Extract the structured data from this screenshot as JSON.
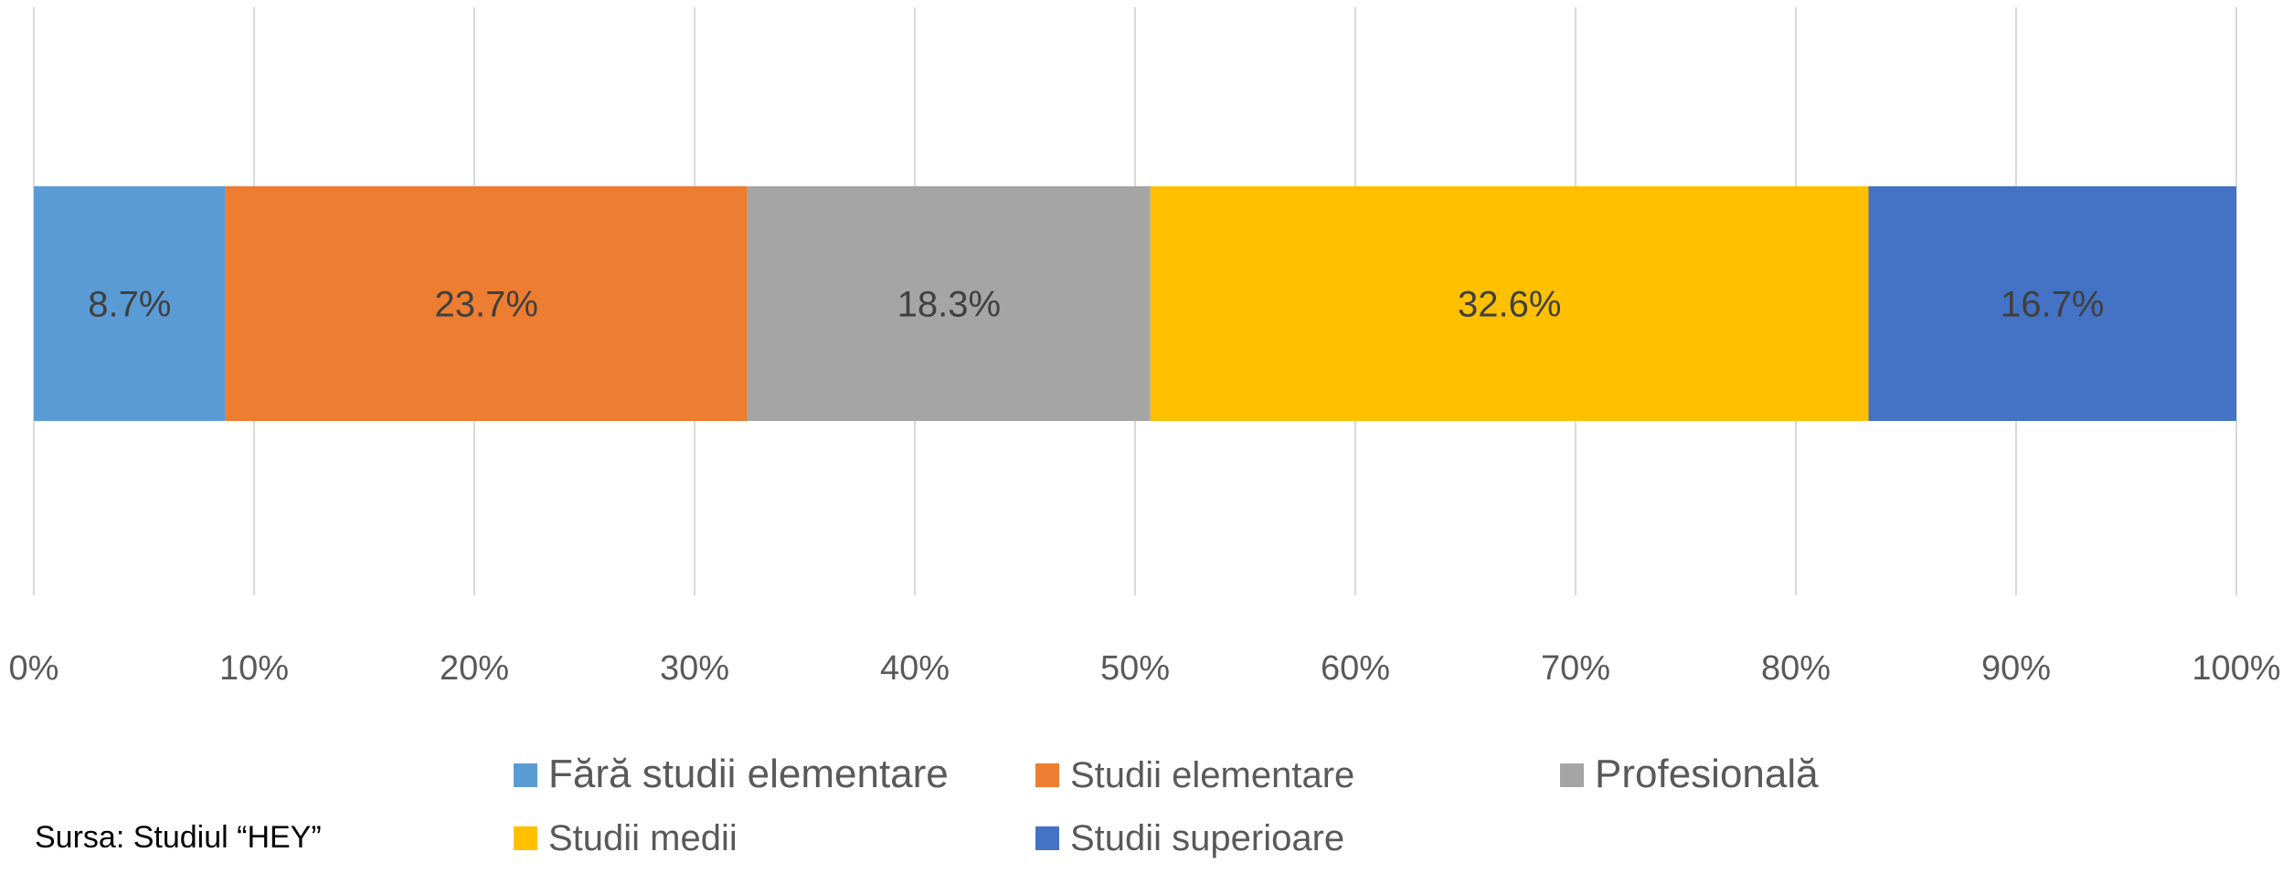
{
  "chart_data": {
    "type": "bar",
    "orientation": "horizontal",
    "stacked": true,
    "percent_stacked": true,
    "categories": [
      ""
    ],
    "series": [
      {
        "name": "Fără studii elementare",
        "values": [
          8.7
        ],
        "label": "8.7%",
        "color": "#5B9BD5"
      },
      {
        "name": "Studii elementare",
        "values": [
          23.7
        ],
        "label": "23.7%",
        "color": "#ED7D31"
      },
      {
        "name": "Profesională",
        "values": [
          18.3
        ],
        "label": "18.3%",
        "color": "#A5A5A5"
      },
      {
        "name": "Studii medii",
        "values": [
          32.6
        ],
        "label": "32.6%",
        "color": "#FFC000"
      },
      {
        "name": "Studii superioare",
        "values": [
          16.7
        ],
        "label": "16.7%",
        "color": "#4472C4"
      }
    ],
    "x_ticks": [
      "0%",
      "10%",
      "20%",
      "30%",
      "40%",
      "50%",
      "60%",
      "70%",
      "80%",
      "90%",
      "100%"
    ],
    "xlim": [
      0,
      100
    ],
    "grid": true,
    "legend_position": "bottom"
  },
  "source_note": "Sursa: Studiul “HEY”"
}
